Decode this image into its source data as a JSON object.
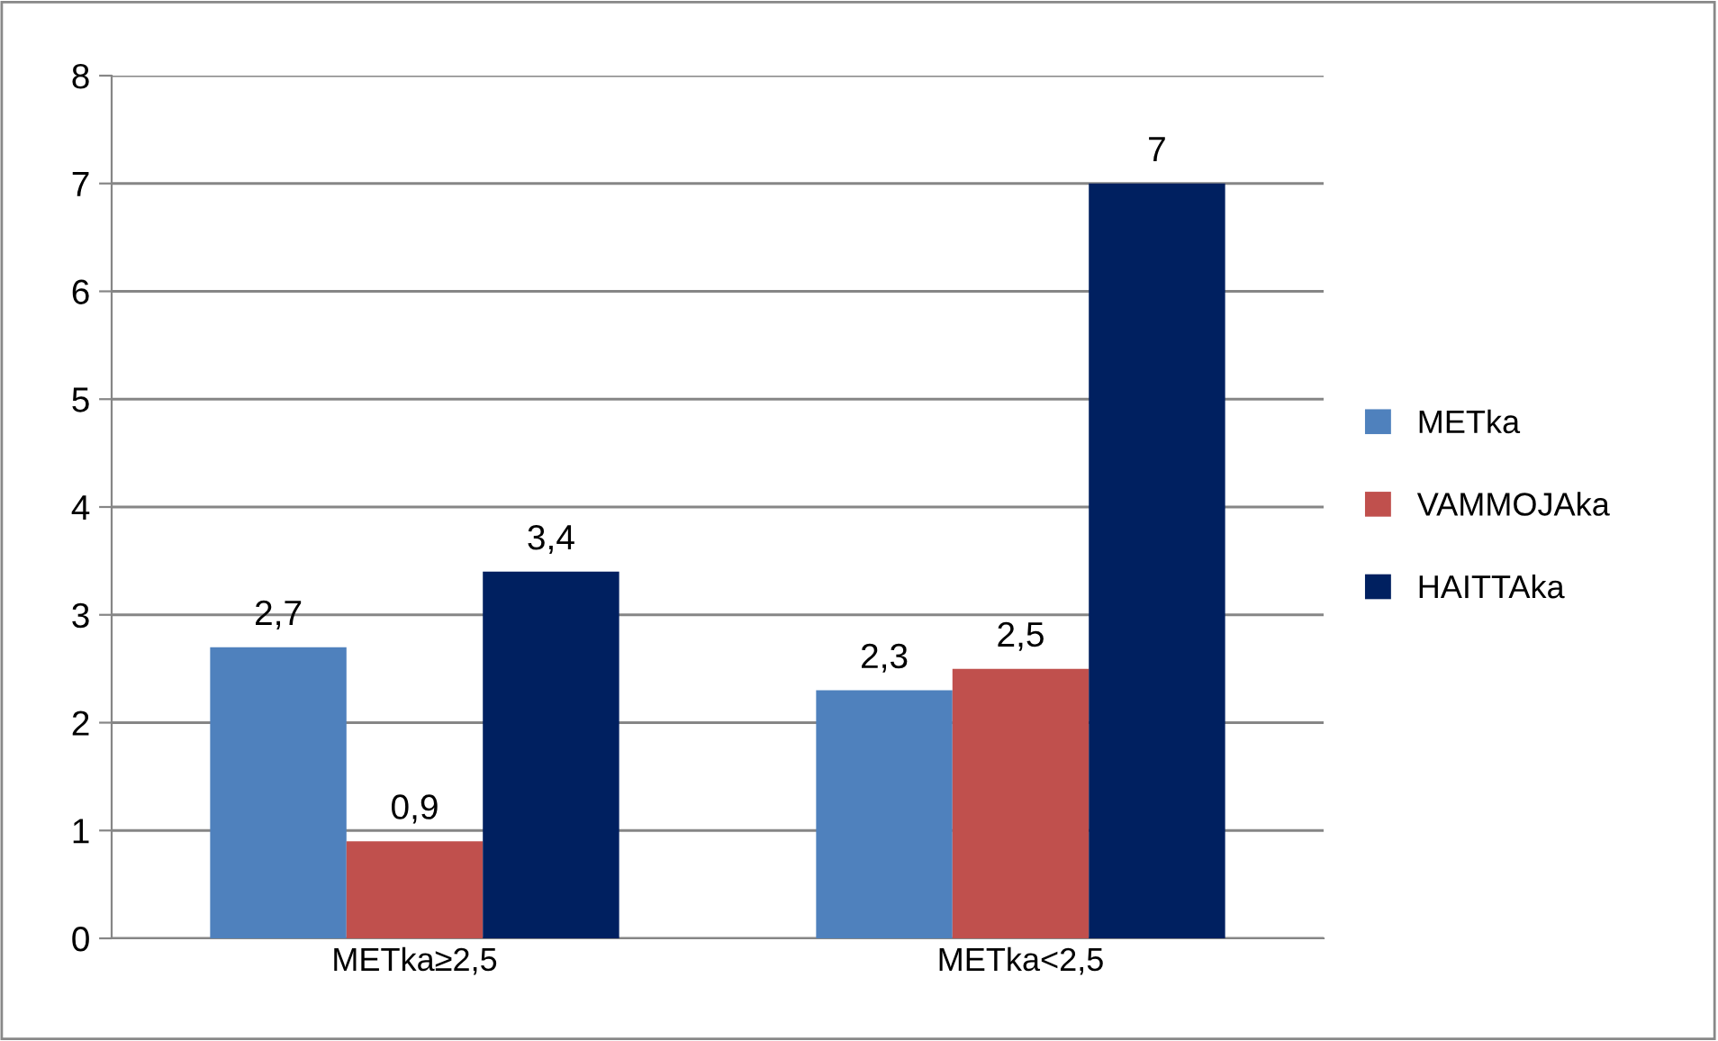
{
  "chart_data": {
    "type": "bar",
    "categories": [
      "METka≥2,5",
      "METka<2,5"
    ],
    "series": [
      {
        "name": "METka",
        "color": "#4f81bd",
        "values": [
          2.7,
          2.3
        ],
        "value_labels": [
          "2,7",
          "2,3"
        ]
      },
      {
        "name": "VAMMOJAka",
        "color": "#c0504d",
        "values": [
          0.9,
          2.5
        ],
        "value_labels": [
          "0,9",
          "2,5"
        ]
      },
      {
        "name": "HAITTAka",
        "color": "#002060",
        "values": [
          3.4,
          7
        ],
        "value_labels": [
          "3,4",
          "7"
        ]
      }
    ],
    "ylim": [
      0,
      8
    ],
    "yticks": [
      0,
      1,
      2,
      3,
      4,
      5,
      6,
      7,
      8
    ],
    "grid": "y",
    "legend": "right"
  }
}
